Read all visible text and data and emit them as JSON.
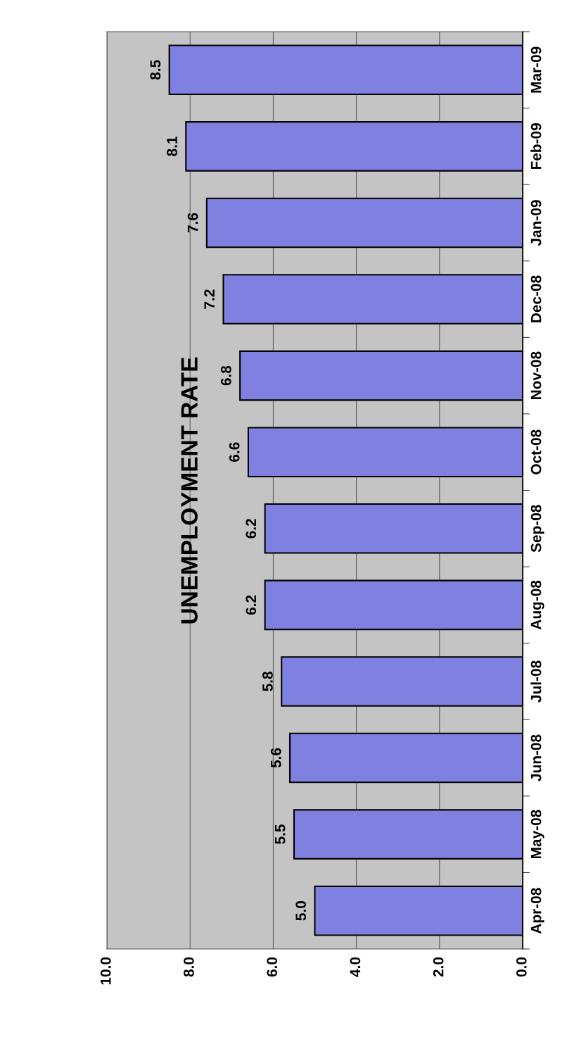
{
  "chart_data": {
    "type": "bar",
    "orientation": "horizontal",
    "title": "UNEMPLOYMENT RATE",
    "categories": [
      "Mar-09",
      "Feb-09",
      "Jan-09",
      "Dec-08",
      "Nov-08",
      "Oct-08",
      "Sep-08",
      "Aug-08",
      "Jul-08",
      "Jun-08",
      "May-08",
      "Apr-08"
    ],
    "values": [
      8.5,
      8.1,
      7.6,
      7.2,
      6.8,
      6.6,
      6.2,
      6.2,
      5.8,
      5.6,
      5.5,
      5.0
    ],
    "value_labels": [
      "8.5",
      "8.1",
      "7.6",
      "7.2",
      "6.8",
      "6.6",
      "6.2",
      "6.2",
      "5.8",
      "5.6",
      "5.5",
      "5.0"
    ],
    "color": "#8080e0",
    "xlim": [
      10,
      0
    ],
    "xticks": [
      {
        "value": 10,
        "label": "10.0"
      },
      {
        "value": 8,
        "label": "8.0"
      },
      {
        "value": 6,
        "label": "6.0"
      },
      {
        "value": 4,
        "label": "4.0"
      },
      {
        "value": 2,
        "label": "2.0"
      },
      {
        "value": 0,
        "label": "0.0"
      }
    ],
    "grid": "x",
    "legend": false
  }
}
